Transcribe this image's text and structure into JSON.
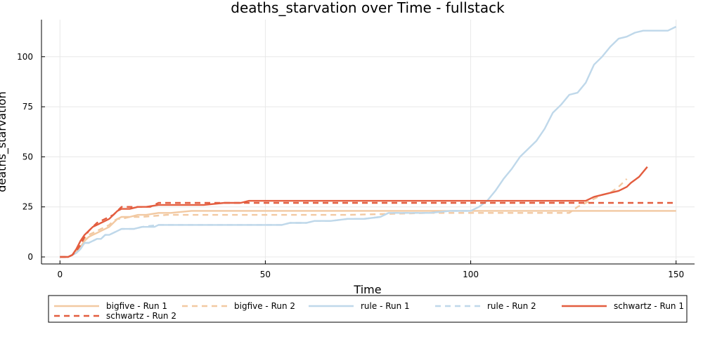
{
  "chart_data": {
    "type": "line",
    "title": "deaths_starvation over Time - fullstack",
    "xlabel": "Time",
    "ylabel": "deaths_starvation",
    "xlim": [
      -4.5,
      154.5
    ],
    "ylim": [
      -3.5,
      118.5
    ],
    "xticks": [
      0,
      50,
      100,
      150
    ],
    "yticks": [
      0,
      25,
      50,
      75,
      100
    ],
    "grid": true,
    "legend_position": "bottom",
    "series": [
      {
        "name": "bigfive - Run 1",
        "color": "#f2c9a2",
        "dash": "solid",
        "x": [
          0,
          2,
          3,
          4,
          5,
          6,
          7,
          8,
          9,
          10,
          11,
          12,
          13,
          14,
          15,
          17,
          19,
          21,
          24,
          27,
          32,
          40,
          60,
          80,
          100,
          120,
          140,
          150
        ],
        "y": [
          0,
          0,
          1,
          3,
          5,
          8,
          10,
          11,
          12,
          13,
          14,
          15,
          17,
          19,
          20,
          20,
          21,
          21,
          22,
          22,
          23,
          23,
          23,
          23,
          23,
          23,
          23,
          23
        ]
      },
      {
        "name": "bigfive - Run 2",
        "color": "#f2c9a2",
        "dash": "8,6",
        "x": [
          0,
          2,
          3,
          4,
          5,
          6,
          7,
          8,
          9,
          10,
          11,
          12,
          13,
          14,
          15,
          17,
          20,
          26,
          30,
          40,
          55,
          70,
          90,
          110,
          124,
          126,
          128,
          130,
          132,
          134,
          136,
          138
        ],
        "y": [
          0,
          0,
          1,
          3,
          6,
          9,
          11,
          12,
          13,
          14,
          15,
          16,
          18,
          19,
          19,
          20,
          20,
          21,
          21,
          21,
          21,
          21,
          22,
          22,
          22,
          25,
          27,
          29,
          31,
          32,
          35,
          39
        ]
      },
      {
        "name": "rule - Run 1",
        "color": "#bfd8ea",
        "dash": "solid",
        "x": [
          0,
          2,
          3,
          4,
          5,
          6,
          7,
          8,
          9,
          10,
          11,
          12,
          14,
          15,
          18,
          20,
          23,
          24,
          30,
          40,
          50,
          54,
          56,
          60,
          62,
          66,
          70,
          74,
          78,
          80,
          85,
          90,
          95,
          100,
          102,
          104,
          106,
          108,
          110,
          112,
          114,
          116,
          118,
          120,
          122,
          124,
          126,
          128,
          130,
          132,
          134,
          136,
          138,
          140,
          142,
          144,
          146,
          148,
          150
        ],
        "y": [
          0,
          0,
          1,
          2,
          4,
          7,
          7,
          8,
          9,
          9,
          11,
          11,
          13,
          14,
          14,
          15,
          15,
          16,
          16,
          16,
          16,
          16,
          17,
          17,
          18,
          18,
          19,
          19,
          20,
          22,
          22,
          22,
          23,
          23,
          25,
          28,
          33,
          39,
          44,
          50,
          54,
          58,
          64,
          72,
          76,
          81,
          82,
          87,
          96,
          100,
          105,
          109,
          110,
          112,
          113,
          113,
          113,
          113,
          115
        ]
      },
      {
        "name": "rule - Run 2",
        "color": "#bfd8ea",
        "dash": "8,6",
        "x": [
          0,
          2,
          3,
          4,
          5,
          6,
          7,
          8,
          9,
          10,
          11,
          12,
          14,
          15,
          18,
          20,
          24,
          30,
          40,
          50,
          54,
          56,
          60,
          62,
          66,
          70,
          74,
          78,
          80,
          85,
          90,
          95,
          100
        ],
        "y": [
          0,
          0,
          1,
          2,
          4,
          7,
          7,
          8,
          9,
          9,
          11,
          11,
          13,
          14,
          14,
          15,
          16,
          16,
          16,
          16,
          16,
          17,
          17,
          18,
          18,
          19,
          19,
          20,
          22,
          22,
          22,
          23,
          23
        ]
      },
      {
        "name": "schwartz - Run 1",
        "color": "#e35d3f",
        "dash": "solid",
        "x": [
          0,
          2,
          3,
          4,
          5,
          6,
          7,
          8,
          9,
          10,
          11,
          12,
          13,
          14,
          15,
          17,
          19,
          21,
          24,
          26,
          30,
          35,
          40,
          44,
          46,
          50,
          60,
          80,
          100,
          120,
          128,
          130,
          132,
          134,
          136,
          138,
          139,
          141,
          143
        ],
        "y": [
          0,
          0,
          1,
          4,
          8,
          11,
          13,
          15,
          16,
          17,
          18,
          19,
          21,
          23,
          24,
          24,
          25,
          25,
          26,
          26,
          26,
          26,
          27,
          27,
          28,
          28,
          28,
          28,
          28,
          28,
          28,
          30,
          31,
          32,
          33,
          35,
          37,
          40,
          45
        ]
      },
      {
        "name": "schwartz - Run 2",
        "color": "#e35d3f",
        "dash": "8,6",
        "x": [
          0,
          2,
          3,
          4,
          5,
          6,
          7,
          8,
          9,
          10,
          11,
          12,
          13,
          14,
          15,
          16,
          18,
          20,
          22,
          24,
          26,
          40,
          60,
          80,
          100,
          120,
          140,
          150
        ],
        "y": [
          0,
          0,
          1,
          3,
          6,
          10,
          13,
          15,
          17,
          18,
          19,
          20,
          21,
          23,
          25,
          25,
          25,
          25,
          25,
          27,
          27,
          27,
          27,
          27,
          27,
          27,
          27,
          27
        ]
      }
    ]
  }
}
